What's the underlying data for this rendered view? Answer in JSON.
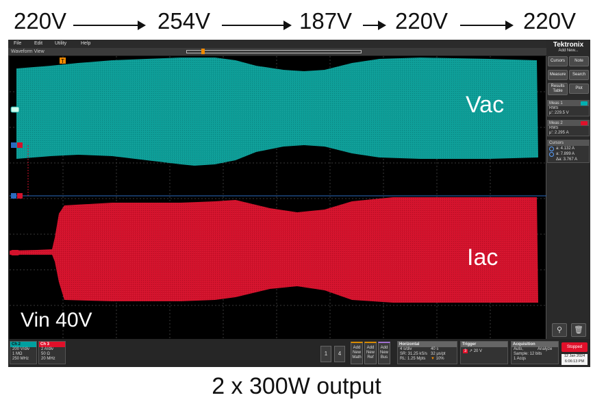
{
  "annotations": {
    "voltage_sequence": [
      "220V",
      "254V",
      "187V",
      "220V",
      "220V"
    ],
    "vac_label": "Vac",
    "iac_label": "Iac",
    "vin_label": "Vin 40V",
    "caption": "2 x 300W output"
  },
  "menu": {
    "file": "File",
    "edit": "Edit",
    "utility": "Utility",
    "help": "Help"
  },
  "waveform_view": {
    "title": "Waveform View"
  },
  "brand": {
    "name": "Tektronix",
    "add_new": "Add New..."
  },
  "right_panel": {
    "buttons": {
      "cursors": "Cursors",
      "note": "Note",
      "measure": "Measure",
      "search": "Search",
      "results_table_1": "Results",
      "results_table_2": "Table",
      "plot": "Plot"
    },
    "meas1": {
      "title": "Meas 1",
      "type": "RMS",
      "value": "μ': 229.5 V",
      "tag_color": "#00b0b0"
    },
    "meas2": {
      "title": "Meas 2",
      "type": "RMS",
      "value": "μ': 2.295 A",
      "tag_color": "#e0102a"
    },
    "cursors": {
      "title": "Cursors",
      "a": "a: 4.132 A",
      "b": "a: 7.899 A",
      "delta": "Δa: 3.767 A"
    }
  },
  "bottom": {
    "ch2": {
      "title": "Ch 2",
      "line1": "200 V/div",
      "line2": "1 MΩ",
      "line3": "250 MHz",
      "color": "#00a0a0"
    },
    "ch3": {
      "title": "Ch 3",
      "line1": "2 A/div",
      "line2": "50 Ω",
      "line3": "20 MHz",
      "color": "#e0102a"
    },
    "num1": "1",
    "num4": "4",
    "add_math": [
      "Add",
      "New",
      "Math"
    ],
    "add_ref": [
      "Add",
      "New",
      "Ref"
    ],
    "add_bus": [
      "Add",
      "New",
      "Bus"
    ],
    "horizontal": {
      "title": "Horizontal",
      "l1a": "4 s/div",
      "l1b": "40 s",
      "l2a": "SR: 31.25 kS/s",
      "l2b": "32 μs/pt",
      "l3a": "RL: 1.25 Mpts",
      "l3b": "10%"
    },
    "trigger": {
      "title": "Trigger",
      "ch": "3",
      "level": "20 V"
    },
    "acquisition": {
      "title": "Acquisition",
      "l1a": "Auto,",
      "l1b": "Analyze",
      "l2": "Sample: 12 bits",
      "l3": "1 Acqs"
    },
    "status": "Stopped",
    "date": "12 Jan 2024",
    "time": "6:06:13 PM"
  },
  "colors": {
    "teal": "#0d9e98",
    "red": "#d4122c",
    "background": "#000000"
  }
}
